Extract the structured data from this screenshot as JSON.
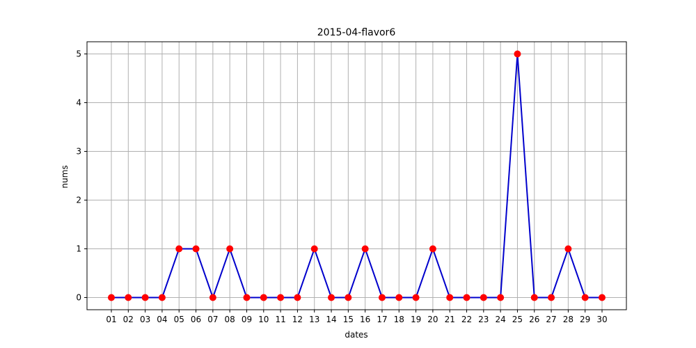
{
  "chart_data": {
    "type": "line",
    "title": "2015-04-flavor6",
    "xlabel": "dates",
    "ylabel": "nums",
    "x": [
      "01",
      "02",
      "03",
      "04",
      "05",
      "06",
      "07",
      "08",
      "09",
      "10",
      "11",
      "12",
      "13",
      "14",
      "15",
      "16",
      "17",
      "18",
      "19",
      "20",
      "21",
      "22",
      "23",
      "24",
      "25",
      "26",
      "27",
      "28",
      "29",
      "30"
    ],
    "y": [
      0,
      0,
      0,
      0,
      1,
      1,
      0,
      1,
      0,
      0,
      0,
      0,
      1,
      0,
      0,
      1,
      0,
      0,
      0,
      1,
      0,
      0,
      0,
      0,
      5,
      0,
      0,
      1,
      0,
      0
    ],
    "yticks": [
      0,
      1,
      2,
      3,
      4,
      5
    ],
    "ylim": [
      -0.25,
      5.25
    ],
    "grid": true,
    "line_color": "#0000cc",
    "marker_color": "#ff0000"
  }
}
